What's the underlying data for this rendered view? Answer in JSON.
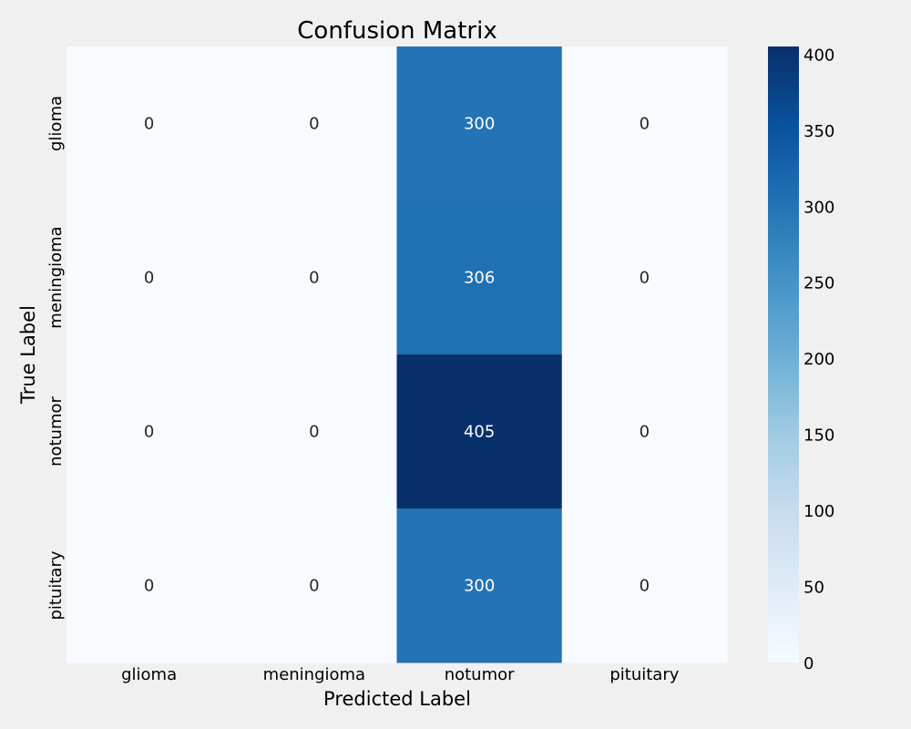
{
  "chart_data": {
    "type": "heatmap",
    "title": "Confusion Matrix",
    "xlabel": "Predicted Label",
    "ylabel": "True Label",
    "x_categories": [
      "glioma",
      "meningioma",
      "notumor",
      "pituitary"
    ],
    "y_categories": [
      "glioma",
      "meningioma",
      "notumor",
      "pituitary"
    ],
    "values": [
      [
        0,
        0,
        300,
        0
      ],
      [
        0,
        0,
        306,
        0
      ],
      [
        0,
        0,
        405,
        0
      ],
      [
        0,
        0,
        300,
        0
      ]
    ],
    "colormap": "Blues",
    "colorbar": {
      "min": 0,
      "max": 405,
      "ticks": [
        0,
        50,
        100,
        150,
        200,
        250,
        300,
        350,
        400
      ]
    },
    "colors": {
      "background": "#f0f0f0",
      "low": "#f7fbff",
      "high": "#08306b"
    }
  }
}
